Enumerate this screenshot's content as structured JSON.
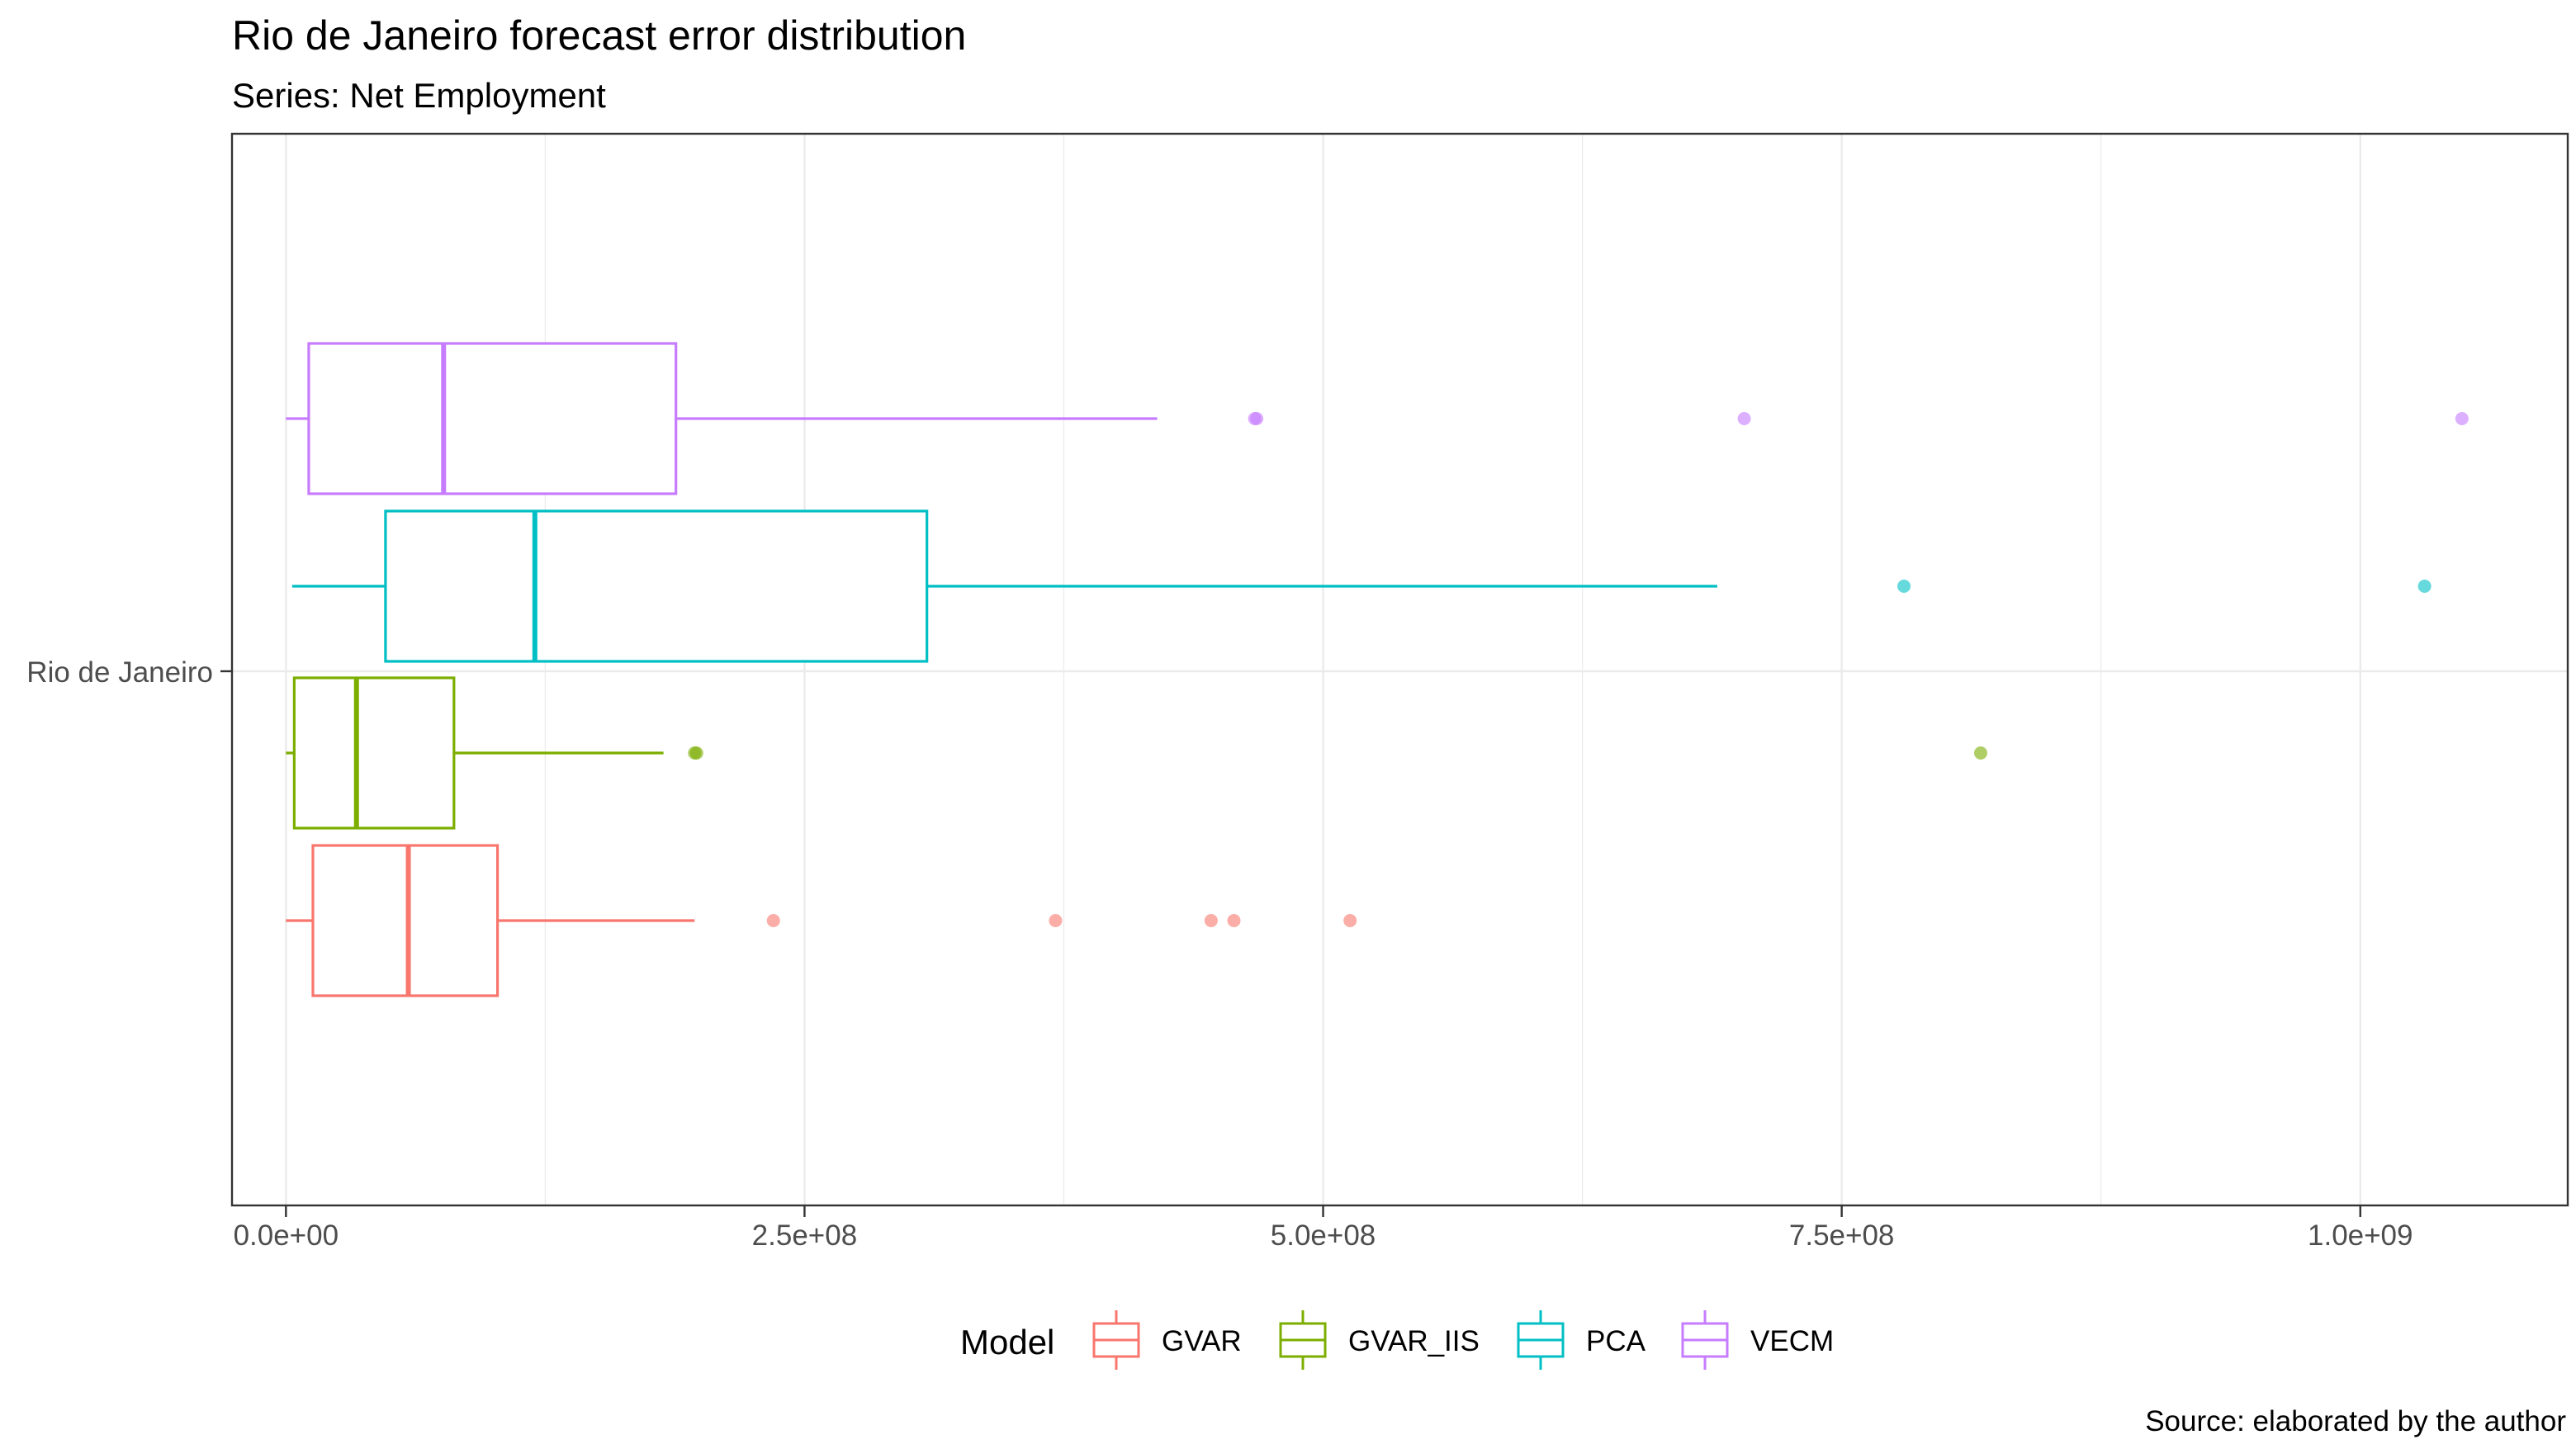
{
  "chart_data": {
    "type": "boxplot",
    "title": "Rio de Janeiro forecast error distribution",
    "subtitle": "Series: Net Employment",
    "caption": "Source: elaborated by the author",
    "orientation": "horizontal",
    "category": "Rio de Janeiro",
    "x_axis": {
      "range": [
        -26000000.0,
        1100000000.0
      ],
      "major_ticks": [
        0,
        250000000,
        500000000,
        750000000,
        1000000000
      ],
      "tick_labels": [
        "0.0e+00",
        "2.5e+08",
        "5.0e+08",
        "7.5e+08",
        "1.0e+09"
      ],
      "minor_ticks": [
        125000000,
        375000000,
        625000000,
        875000000
      ]
    },
    "grid": true,
    "legend": {
      "title": "Model",
      "position": "bottom"
    },
    "series": [
      {
        "name": "GVAR",
        "color": "#F8766D",
        "whisker_low": 0,
        "q1": 13000000.0,
        "median": 59000000.0,
        "q3": 102000000.0,
        "whisker_high": 197000000.0,
        "outliers": [
          235000000.0,
          371000000.0,
          446000000.0,
          457000000.0,
          513000000.0
        ]
      },
      {
        "name": "GVAR_IIS",
        "color": "#7CAE00",
        "whisker_low": 0,
        "q1": 4000000.0,
        "median": 34000000.0,
        "q3": 81000000.0,
        "whisker_high": 182000000.0,
        "outliers": [
          197000000.0,
          198000000.0,
          817000000.0
        ]
      },
      {
        "name": "PCA",
        "color": "#00BFC4",
        "whisker_low": 3000000.0,
        "q1": 48000000.0,
        "median": 120000000.0,
        "q3": 309000000.0,
        "whisker_high": 690000000.0,
        "outliers": [
          780000000.0,
          1031000000.0
        ]
      },
      {
        "name": "VECM",
        "color": "#C77CFF",
        "whisker_low": 0,
        "q1": 11000000.0,
        "median": 76000000.0,
        "q3": 188000000.0,
        "whisker_high": 420000000.0,
        "outliers": [
          467000000.0,
          468000000.0,
          703000000.0,
          1049000000.0
        ]
      }
    ]
  }
}
